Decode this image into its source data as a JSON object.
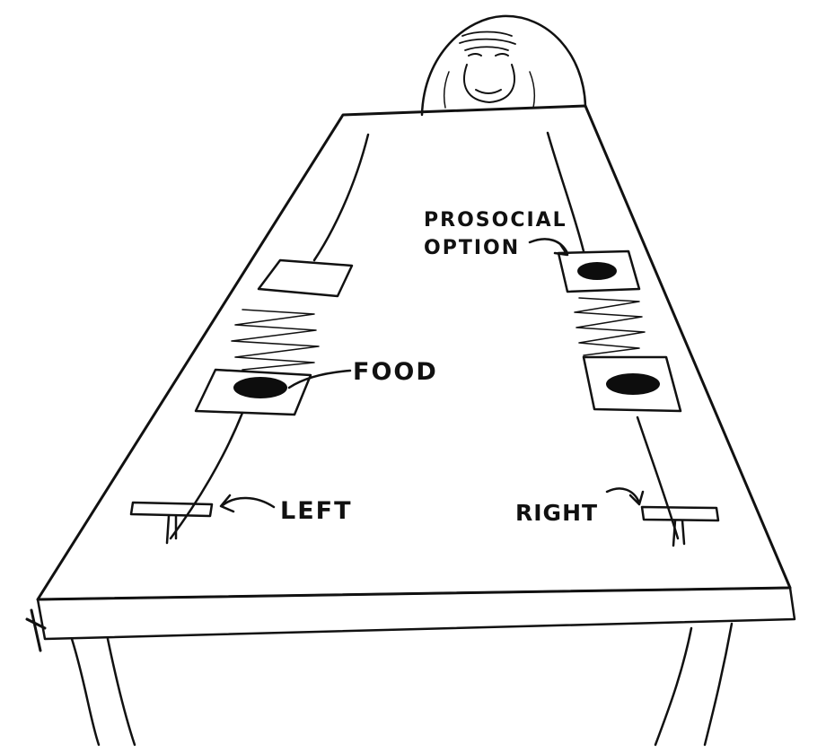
{
  "labels": {
    "prosocial_line1": "PROSOCIAL",
    "prosocial_line2": "OPTION",
    "food": "FOOD",
    "left": "LEFT",
    "right": "RIGHT"
  },
  "colors": {
    "ink": "#111111",
    "paper": "#ffffff",
    "food": "#0d0d0d"
  }
}
